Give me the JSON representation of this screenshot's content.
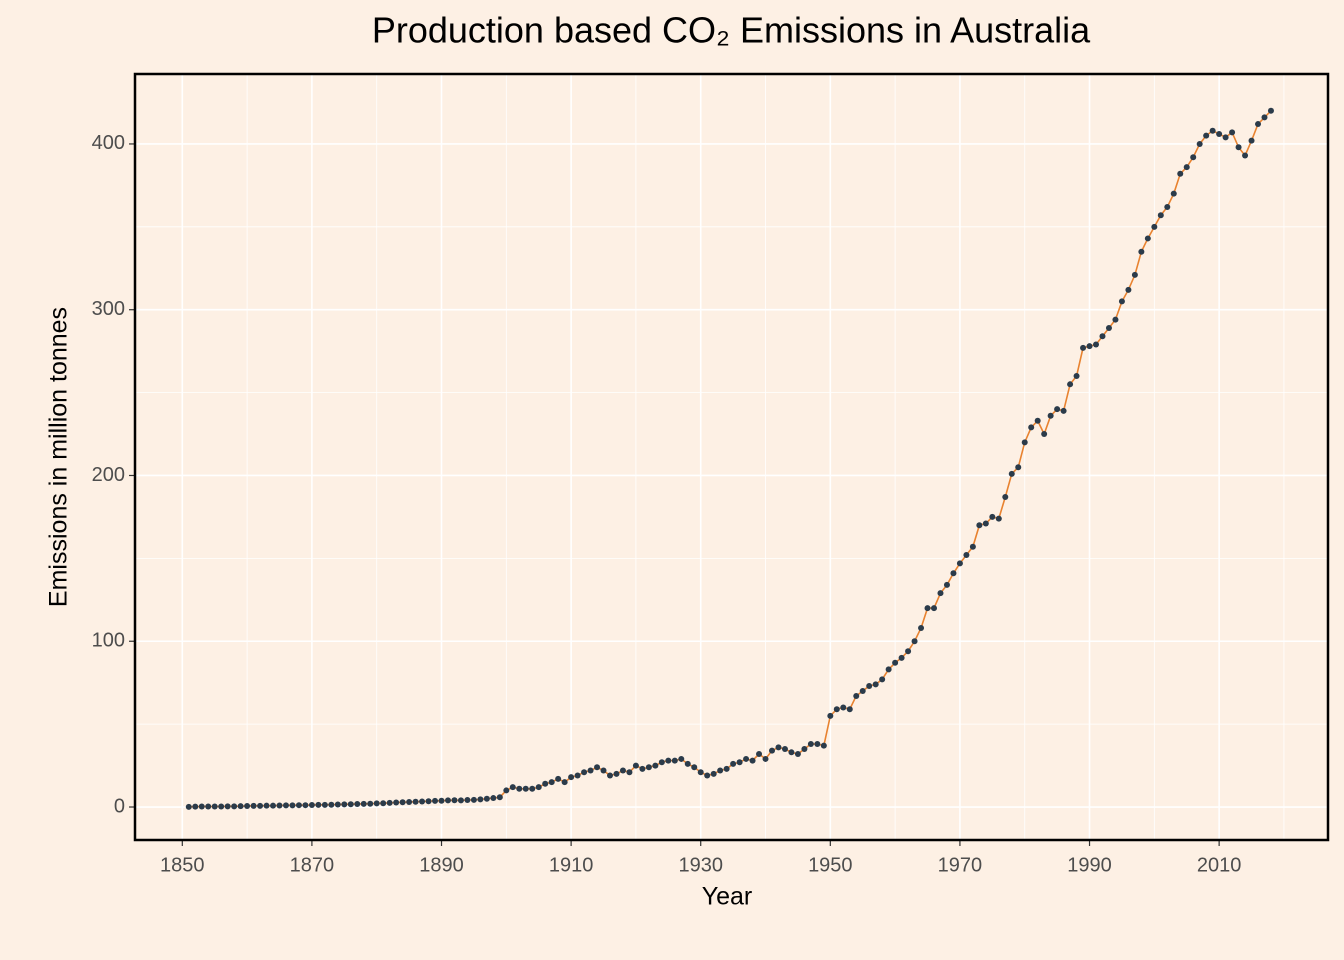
{
  "chart_data": {
    "type": "line",
    "title": "Production based CO₂ Emissions in Australia",
    "x_label": "Year",
    "y_label": "Emissions in million tonnes",
    "x": [
      1851,
      1852,
      1853,
      1854,
      1855,
      1856,
      1857,
      1858,
      1859,
      1860,
      1861,
      1862,
      1863,
      1864,
      1865,
      1866,
      1867,
      1868,
      1869,
      1870,
      1871,
      1872,
      1873,
      1874,
      1875,
      1876,
      1877,
      1878,
      1879,
      1880,
      1881,
      1882,
      1883,
      1884,
      1885,
      1886,
      1887,
      1888,
      1889,
      1890,
      1891,
      1892,
      1893,
      1894,
      1895,
      1896,
      1897,
      1898,
      1899,
      1900,
      1901,
      1902,
      1903,
      1904,
      1905,
      1906,
      1907,
      1908,
      1909,
      1910,
      1911,
      1912,
      1913,
      1914,
      1915,
      1916,
      1917,
      1918,
      1919,
      1920,
      1921,
      1922,
      1923,
      1924,
      1925,
      1926,
      1927,
      1928,
      1929,
      1930,
      1931,
      1932,
      1933,
      1934,
      1935,
      1936,
      1937,
      1938,
      1939,
      1940,
      1941,
      1942,
      1943,
      1944,
      1945,
      1946,
      1947,
      1948,
      1949,
      1950,
      1951,
      1952,
      1953,
      1954,
      1955,
      1956,
      1957,
      1958,
      1959,
      1960,
      1961,
      1962,
      1963,
      1964,
      1965,
      1966,
      1967,
      1968,
      1969,
      1970,
      1971,
      1972,
      1973,
      1974,
      1975,
      1976,
      1977,
      1978,
      1979,
      1980,
      1981,
      1982,
      1983,
      1984,
      1985,
      1986,
      1987,
      1988,
      1989,
      1990,
      1991,
      1992,
      1993,
      1994,
      1995,
      1996,
      1997,
      1998,
      1999,
      2000,
      2001,
      2002,
      2003,
      2004,
      2005,
      2006,
      2007,
      2008,
      2009,
      2010,
      2011,
      2012,
      2013,
      2014,
      2015,
      2016,
      2017,
      2018
    ],
    "series": [
      {
        "line_color": "#e8822f",
        "color": "#2b3b4a",
        "values": [
          0.1,
          0.2,
          0.3,
          0.3,
          0.3,
          0.3,
          0.4,
          0.4,
          0.5,
          0.6,
          0.7,
          0.7,
          0.8,
          0.8,
          0.9,
          1.0,
          1.0,
          1.1,
          1.1,
          1.2,
          1.3,
          1.3,
          1.4,
          1.5,
          1.6,
          1.7,
          1.8,
          1.9,
          2.0,
          2.2,
          2.3,
          2.5,
          2.7,
          2.9,
          3.0,
          3.2,
          3.3,
          3.5,
          3.7,
          3.8,
          4.0,
          4.1,
          4.0,
          4.2,
          4.3,
          4.6,
          5.0,
          5.4,
          5.9,
          10,
          12,
          11,
          11,
          11,
          12,
          14,
          15,
          17,
          15,
          18,
          19,
          21,
          22,
          24,
          22,
          19,
          20,
          22,
          21,
          25,
          23,
          24,
          25,
          27,
          28,
          28,
          29,
          26,
          24,
          21,
          19,
          20,
          22,
          23,
          26,
          27,
          29,
          28,
          32,
          29,
          34,
          36,
          35,
          33,
          32,
          35,
          38,
          38,
          37,
          55,
          59,
          60,
          59,
          67,
          70,
          73,
          74,
          77,
          83,
          87,
          90,
          94,
          100,
          108,
          120,
          120,
          129,
          134,
          141,
          147,
          152,
          157,
          170,
          171,
          175,
          174,
          187,
          201,
          205,
          220,
          229,
          233,
          225,
          236,
          240,
          239,
          255,
          260,
          277,
          278,
          279,
          284,
          289,
          294,
          305,
          312,
          321,
          335,
          343,
          350,
          357,
          362,
          370,
          382,
          386,
          392,
          400,
          405,
          408,
          406,
          404,
          407,
          398,
          393,
          402,
          412,
          416,
          420
        ]
      }
    ],
    "xlim": [
      1842.7,
      2026.8
    ],
    "ylim": [
      -19.9,
      442.2
    ],
    "xticks": [
      1850,
      1870,
      1890,
      1910,
      1930,
      1950,
      1970,
      1990,
      2010
    ],
    "yticks": [
      0,
      100,
      200,
      300,
      400
    ],
    "xminor": [
      1860,
      1880,
      1900,
      1920,
      1940,
      1960,
      1980,
      2000,
      2020
    ],
    "yminor": [
      50,
      150,
      250,
      350
    ],
    "grid": true
  }
}
